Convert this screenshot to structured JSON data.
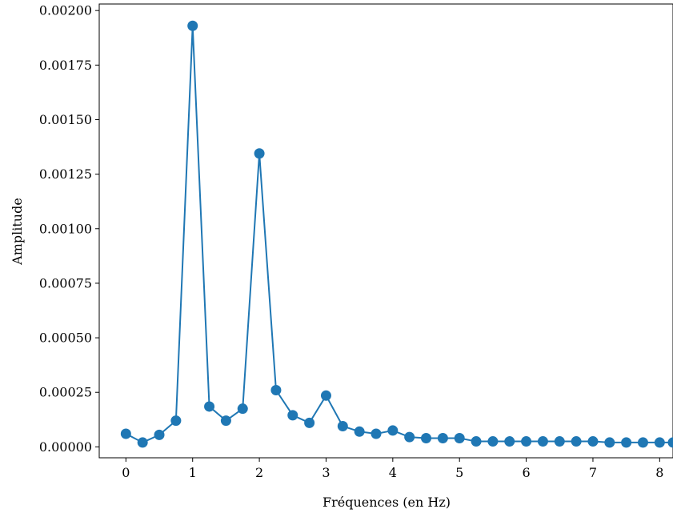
{
  "chart_data": {
    "type": "line",
    "title": "",
    "xlabel": "Fréquences (en Hz)",
    "ylabel": "Amplitude",
    "xlim": [
      -0.4,
      8.2
    ],
    "ylim": [
      -5e-05,
      0.00203
    ],
    "xticks": [
      0,
      1,
      2,
      3,
      4,
      5,
      6,
      7,
      8
    ],
    "xtick_labels": [
      "0",
      "1",
      "2",
      "3",
      "4",
      "5",
      "6",
      "7",
      "8"
    ],
    "yticks": [
      0,
      0.00025,
      0.0005,
      0.00075,
      0.001,
      0.00125,
      0.0015,
      0.00175,
      0.002
    ],
    "ytick_labels": [
      "0.00000",
      "0.00025",
      "0.00050",
      "0.00075",
      "0.00100",
      "0.00125",
      "0.00150",
      "0.00175",
      "0.00200"
    ],
    "grid": false,
    "marker": "circle",
    "color": "#1f77b4",
    "series": [
      {
        "x": [
          0,
          0.25,
          0.5,
          0.75,
          1,
          1.25,
          1.5,
          1.75,
          2,
          2.25,
          2.5,
          2.75,
          3,
          3.25,
          3.5,
          3.75,
          4,
          4.25,
          4.5,
          4.75,
          5,
          5.25,
          5.5,
          5.75,
          6,
          6.25,
          6.5,
          6.75,
          7,
          7.25,
          7.5,
          7.75,
          8,
          8.2
        ],
        "y": [
          6e-05,
          2e-05,
          5.5e-05,
          0.00012,
          0.00193,
          0.000185,
          0.00012,
          0.000175,
          0.001345,
          0.00026,
          0.000145,
          0.00011,
          0.000235,
          9.5e-05,
          7e-05,
          6e-05,
          7.5e-05,
          4.5e-05,
          4e-05,
          4e-05,
          4e-05,
          2.5e-05,
          2.5e-05,
          2.5e-05,
          2.5e-05,
          2.5e-05,
          2.5e-05,
          2.5e-05,
          2.5e-05,
          2e-05,
          2e-05,
          2e-05,
          2e-05,
          2e-05
        ]
      }
    ]
  }
}
